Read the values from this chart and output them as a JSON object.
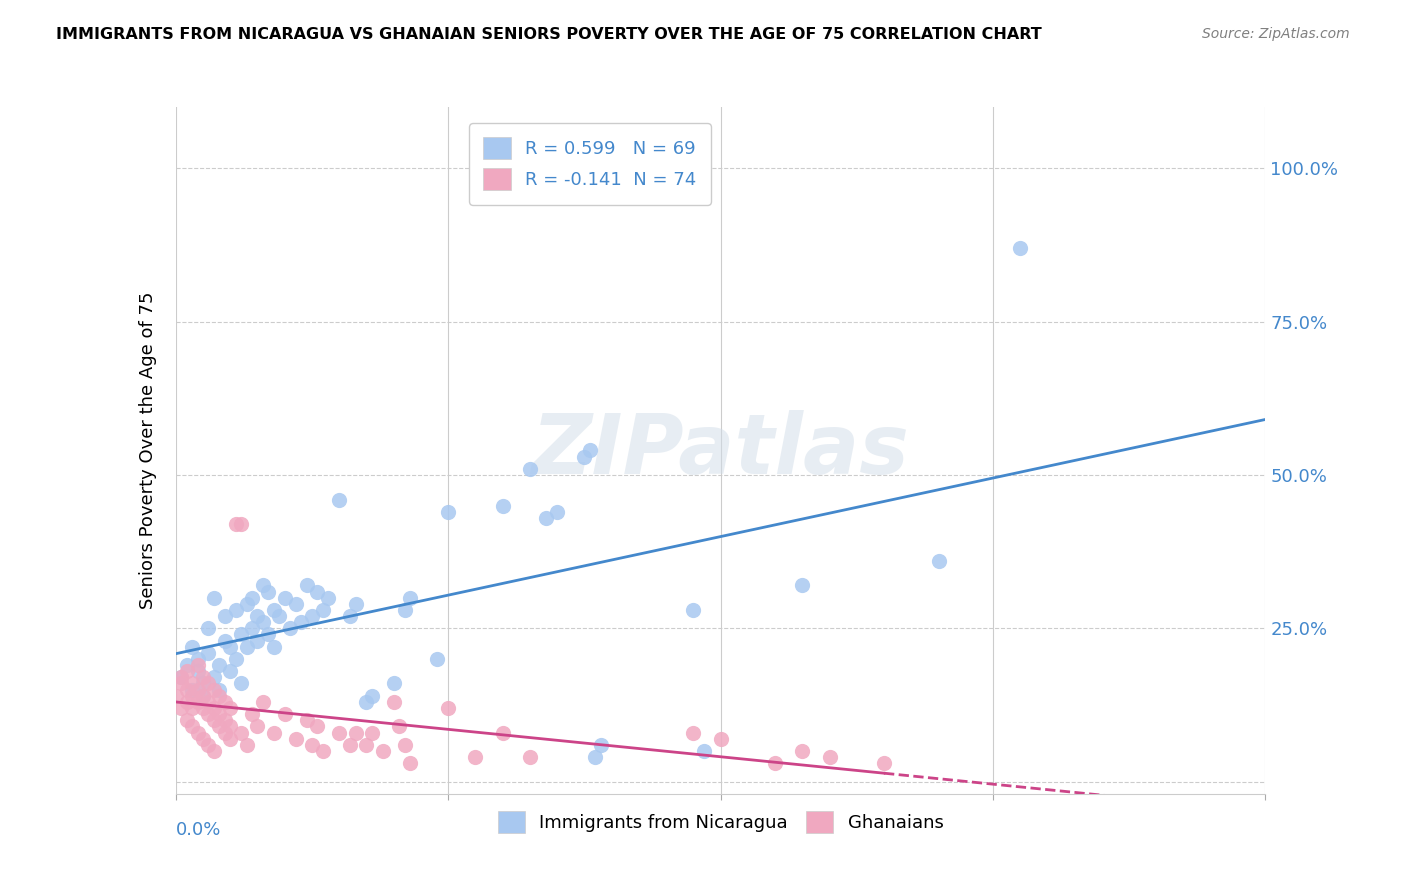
{
  "title": "IMMIGRANTS FROM NICARAGUA VS GHANAIAN SENIORS POVERTY OVER THE AGE OF 75 CORRELATION CHART",
  "source": "Source: ZipAtlas.com",
  "ylabel": "Seniors Poverty Over the Age of 75",
  "xlim": [
    0.0,
    0.2
  ],
  "ylim": [
    -0.02,
    1.1
  ],
  "yticks": [
    0.0,
    0.25,
    0.5,
    0.75,
    1.0
  ],
  "xticks": [
    0.0,
    0.05,
    0.1,
    0.15,
    0.2
  ],
  "blue_color": "#a8c8f0",
  "pink_color": "#f0a8c0",
  "blue_line_color": "#4488cc",
  "pink_line_color": "#cc4488",
  "blue_scatter": [
    [
      0.001,
      0.17
    ],
    [
      0.002,
      0.19
    ],
    [
      0.003,
      0.15
    ],
    [
      0.003,
      0.22
    ],
    [
      0.004,
      0.18
    ],
    [
      0.004,
      0.2
    ],
    [
      0.005,
      0.14
    ],
    [
      0.005,
      0.16
    ],
    [
      0.006,
      0.21
    ],
    [
      0.006,
      0.25
    ],
    [
      0.007,
      0.17
    ],
    [
      0.007,
      0.3
    ],
    [
      0.008,
      0.15
    ],
    [
      0.008,
      0.19
    ],
    [
      0.009,
      0.23
    ],
    [
      0.009,
      0.27
    ],
    [
      0.01,
      0.18
    ],
    [
      0.01,
      0.22
    ],
    [
      0.011,
      0.2
    ],
    [
      0.011,
      0.28
    ],
    [
      0.012,
      0.16
    ],
    [
      0.012,
      0.24
    ],
    [
      0.013,
      0.22
    ],
    [
      0.013,
      0.29
    ],
    [
      0.014,
      0.25
    ],
    [
      0.014,
      0.3
    ],
    [
      0.015,
      0.23
    ],
    [
      0.015,
      0.27
    ],
    [
      0.016,
      0.26
    ],
    [
      0.016,
      0.32
    ],
    [
      0.017,
      0.24
    ],
    [
      0.017,
      0.31
    ],
    [
      0.018,
      0.22
    ],
    [
      0.018,
      0.28
    ],
    [
      0.019,
      0.27
    ],
    [
      0.02,
      0.3
    ],
    [
      0.021,
      0.25
    ],
    [
      0.022,
      0.29
    ],
    [
      0.023,
      0.26
    ],
    [
      0.024,
      0.32
    ],
    [
      0.025,
      0.27
    ],
    [
      0.026,
      0.31
    ],
    [
      0.027,
      0.28
    ],
    [
      0.028,
      0.3
    ],
    [
      0.03,
      0.46
    ],
    [
      0.032,
      0.27
    ],
    [
      0.033,
      0.29
    ],
    [
      0.035,
      0.13
    ],
    [
      0.036,
      0.14
    ],
    [
      0.04,
      0.16
    ],
    [
      0.042,
      0.28
    ],
    [
      0.043,
      0.3
    ],
    [
      0.048,
      0.2
    ],
    [
      0.05,
      0.44
    ],
    [
      0.06,
      0.45
    ],
    [
      0.065,
      0.51
    ],
    [
      0.068,
      0.43
    ],
    [
      0.07,
      0.44
    ],
    [
      0.075,
      0.53
    ],
    [
      0.076,
      0.54
    ],
    [
      0.077,
      0.04
    ],
    [
      0.078,
      0.06
    ],
    [
      0.095,
      0.28
    ],
    [
      0.097,
      0.05
    ],
    [
      0.115,
      0.32
    ],
    [
      0.14,
      0.36
    ],
    [
      0.155,
      0.87
    ]
  ],
  "pink_scatter": [
    [
      0.0,
      0.14
    ],
    [
      0.001,
      0.16
    ],
    [
      0.001,
      0.12
    ],
    [
      0.001,
      0.17
    ],
    [
      0.002,
      0.15
    ],
    [
      0.002,
      0.13
    ],
    [
      0.002,
      0.18
    ],
    [
      0.002,
      0.1
    ],
    [
      0.003,
      0.14
    ],
    [
      0.003,
      0.16
    ],
    [
      0.003,
      0.12
    ],
    [
      0.003,
      0.09
    ],
    [
      0.004,
      0.15
    ],
    [
      0.004,
      0.13
    ],
    [
      0.004,
      0.19
    ],
    [
      0.004,
      0.08
    ],
    [
      0.005,
      0.14
    ],
    [
      0.005,
      0.12
    ],
    [
      0.005,
      0.17
    ],
    [
      0.005,
      0.07
    ],
    [
      0.006,
      0.13
    ],
    [
      0.006,
      0.11
    ],
    [
      0.006,
      0.16
    ],
    [
      0.006,
      0.06
    ],
    [
      0.007,
      0.12
    ],
    [
      0.007,
      0.1
    ],
    [
      0.007,
      0.15
    ],
    [
      0.007,
      0.05
    ],
    [
      0.008,
      0.11
    ],
    [
      0.008,
      0.09
    ],
    [
      0.008,
      0.14
    ],
    [
      0.009,
      0.1
    ],
    [
      0.009,
      0.08
    ],
    [
      0.009,
      0.13
    ],
    [
      0.01,
      0.09
    ],
    [
      0.01,
      0.07
    ],
    [
      0.01,
      0.12
    ],
    [
      0.011,
      0.42
    ],
    [
      0.012,
      0.42
    ],
    [
      0.012,
      0.08
    ],
    [
      0.013,
      0.06
    ],
    [
      0.014,
      0.11
    ],
    [
      0.015,
      0.09
    ],
    [
      0.016,
      0.13
    ],
    [
      0.018,
      0.08
    ],
    [
      0.02,
      0.11
    ],
    [
      0.022,
      0.07
    ],
    [
      0.024,
      0.1
    ],
    [
      0.025,
      0.06
    ],
    [
      0.026,
      0.09
    ],
    [
      0.027,
      0.05
    ],
    [
      0.03,
      0.08
    ],
    [
      0.032,
      0.06
    ],
    [
      0.033,
      0.08
    ],
    [
      0.035,
      0.06
    ],
    [
      0.036,
      0.08
    ],
    [
      0.038,
      0.05
    ],
    [
      0.04,
      0.13
    ],
    [
      0.041,
      0.09
    ],
    [
      0.042,
      0.06
    ],
    [
      0.043,
      0.03
    ],
    [
      0.05,
      0.12
    ],
    [
      0.055,
      0.04
    ],
    [
      0.06,
      0.08
    ],
    [
      0.065,
      0.04
    ],
    [
      0.095,
      0.08
    ],
    [
      0.1,
      0.07
    ],
    [
      0.11,
      0.03
    ],
    [
      0.115,
      0.05
    ],
    [
      0.12,
      0.04
    ],
    [
      0.13,
      0.03
    ]
  ],
  "background_color": "#ffffff",
  "watermark": "ZIPatlas",
  "watermark_color": "#d0dce8"
}
